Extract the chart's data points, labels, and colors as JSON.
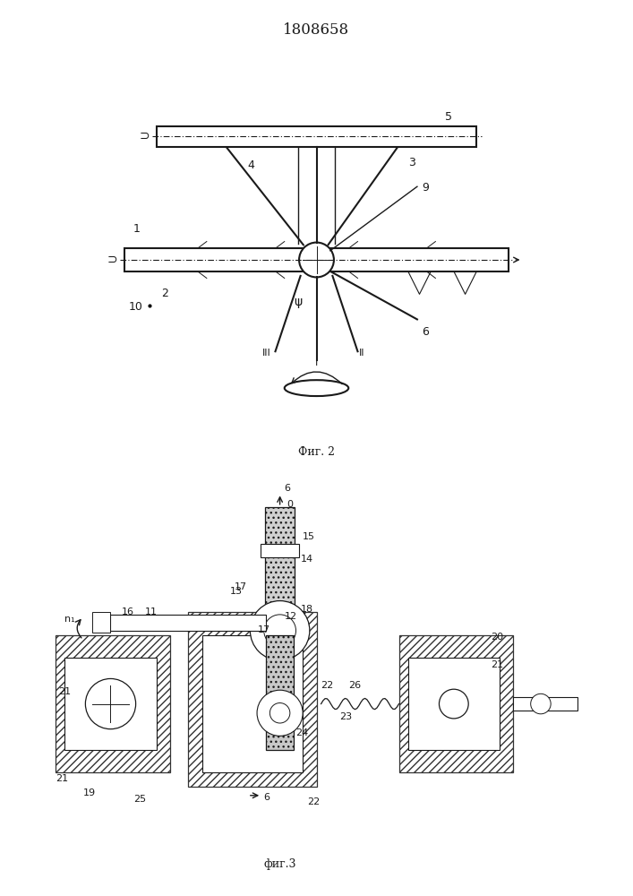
{
  "title": "1808658",
  "title_fontsize": 12,
  "fig1_caption": "Фиг. 2",
  "fig2_caption": "фиг.3",
  "bg_color": "#f5f5f0",
  "line_color": "#1a1a1a",
  "hatch_color": "#333333",
  "fig_width": 7.07,
  "fig_height": 10.0
}
